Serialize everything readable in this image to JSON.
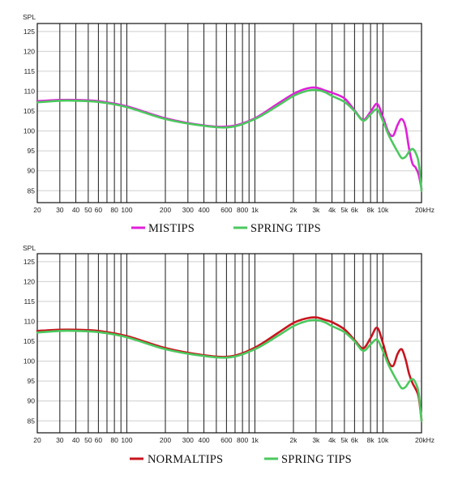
{
  "chart_data": [
    {
      "type": "line",
      "ylabel": "SPL",
      "xscale": "log",
      "xlim": [
        20,
        20000
      ],
      "ylim": [
        82,
        127
      ],
      "yticks": [
        85,
        90,
        95,
        100,
        105,
        110,
        115,
        120,
        125
      ],
      "xtick_labels": [
        {
          "value": 20,
          "label": "20"
        },
        {
          "value": 30,
          "label": "30"
        },
        {
          "value": 40,
          "label": "40"
        },
        {
          "value": 50,
          "label": "50"
        },
        {
          "value": 60,
          "label": "60"
        },
        {
          "value": 80,
          "label": "80"
        },
        {
          "value": 100,
          "label": "100"
        },
        {
          "value": 200,
          "label": "200"
        },
        {
          "value": 300,
          "label": "300"
        },
        {
          "value": 400,
          "label": "400"
        },
        {
          "value": 600,
          "label": "600"
        },
        {
          "value": 800,
          "label": "800"
        },
        {
          "value": 1000,
          "label": "1k"
        },
        {
          "value": 2000,
          "label": "2k"
        },
        {
          "value": 3000,
          "label": "3k"
        },
        {
          "value": 4000,
          "label": "4k"
        },
        {
          "value": 5000,
          "label": "5k"
        },
        {
          "value": 6000,
          "label": "6k"
        },
        {
          "value": 8000,
          "label": "8k"
        },
        {
          "value": 10000,
          "label": "10k"
        },
        {
          "value": 20000,
          "label": "20kHz"
        }
      ],
      "grid_x": [
        20,
        30,
        40,
        50,
        60,
        70,
        80,
        90,
        100,
        200,
        300,
        400,
        500,
        600,
        700,
        800,
        900,
        1000,
        2000,
        3000,
        4000,
        5000,
        6000,
        7000,
        8000,
        9000,
        10000,
        20000
      ],
      "grid": true,
      "legend_position": "bottom-center",
      "series": [
        {
          "name": "MISTIPS",
          "color": "#e020d8",
          "x": [
            20,
            30,
            40,
            60,
            100,
            200,
            400,
            650,
            1000,
            1500,
            2000,
            2500,
            3000,
            3500,
            4000,
            5000,
            6000,
            7000,
            8000,
            9000,
            10000,
            11000,
            12000,
            13000,
            14000,
            15000,
            16000,
            17000,
            18000,
            19000,
            20000
          ],
          "values": [
            107.5,
            107.8,
            107.8,
            107.5,
            106.2,
            103.2,
            101.4,
            101.2,
            103.2,
            106.8,
            109.3,
            110.6,
            110.9,
            110.2,
            109.6,
            108.2,
            105.2,
            102.8,
            104.8,
            106.8,
            103.5,
            99.8,
            98.8,
            101.5,
            103.0,
            101.0,
            95.5,
            91.8,
            90.8,
            89.0,
            85.5
          ]
        },
        {
          "name": "SPRING TIPS",
          "color": "#4cc85e",
          "x": [
            20,
            30,
            40,
            60,
            100,
            200,
            400,
            650,
            1000,
            1500,
            2000,
            2500,
            3000,
            3500,
            4000,
            5000,
            6000,
            7000,
            8000,
            9000,
            10000,
            11000,
            12000,
            13000,
            14000,
            15000,
            16000,
            17000,
            18000,
            19000,
            20000
          ],
          "values": [
            107.2,
            107.6,
            107.6,
            107.3,
            106.0,
            103.0,
            101.3,
            101.0,
            103.0,
            106.3,
            108.8,
            110.0,
            110.3,
            109.8,
            108.8,
            107.3,
            105.0,
            102.6,
            104.2,
            105.4,
            102.5,
            99.2,
            96.8,
            94.8,
            93.2,
            93.5,
            94.8,
            95.5,
            94.5,
            92.0,
            85.0
          ]
        }
      ],
      "legend": {
        "left": "MISTIPS",
        "right": "SPRING TIPS"
      }
    },
    {
      "type": "line",
      "ylabel": "SPL",
      "xscale": "log",
      "xlim": [
        20,
        20000
      ],
      "ylim": [
        82,
        127
      ],
      "yticks": [
        85,
        90,
        95,
        100,
        105,
        110,
        115,
        120,
        125
      ],
      "xtick_labels": [
        {
          "value": 20,
          "label": "20"
        },
        {
          "value": 30,
          "label": "30"
        },
        {
          "value": 40,
          "label": "40"
        },
        {
          "value": 50,
          "label": "50"
        },
        {
          "value": 60,
          "label": "60"
        },
        {
          "value": 80,
          "label": "80"
        },
        {
          "value": 100,
          "label": "100"
        },
        {
          "value": 200,
          "label": "200"
        },
        {
          "value": 300,
          "label": "300"
        },
        {
          "value": 400,
          "label": "400"
        },
        {
          "value": 600,
          "label": "600"
        },
        {
          "value": 800,
          "label": "800"
        },
        {
          "value": 1000,
          "label": "1k"
        },
        {
          "value": 2000,
          "label": "2k"
        },
        {
          "value": 3000,
          "label": "3k"
        },
        {
          "value": 4000,
          "label": "4k"
        },
        {
          "value": 5000,
          "label": "5k"
        },
        {
          "value": 6000,
          "label": "6k"
        },
        {
          "value": 8000,
          "label": "8k"
        },
        {
          "value": 10000,
          "label": "10k"
        },
        {
          "value": 20000,
          "label": "20kHz"
        }
      ],
      "grid_x": [
        20,
        30,
        40,
        50,
        60,
        70,
        80,
        90,
        100,
        200,
        300,
        400,
        500,
        600,
        700,
        800,
        900,
        1000,
        2000,
        3000,
        4000,
        5000,
        6000,
        7000,
        8000,
        9000,
        10000,
        20000
      ],
      "grid": true,
      "legend_position": "bottom-center",
      "series": [
        {
          "name": "NORMALTIPS",
          "color": "#c8141e",
          "x": [
            20,
            30,
            40,
            60,
            100,
            200,
            400,
            650,
            1000,
            1500,
            2000,
            2500,
            3000,
            3500,
            4000,
            5000,
            6000,
            7000,
            8000,
            9000,
            10000,
            11000,
            12000,
            13000,
            14000,
            15000,
            16000,
            17000,
            18000,
            19000,
            20000
          ],
          "values": [
            107.6,
            107.9,
            107.9,
            107.6,
            106.3,
            103.3,
            101.5,
            101.2,
            103.4,
            107.0,
            109.6,
            110.7,
            111.0,
            110.4,
            109.8,
            108.0,
            105.3,
            103.2,
            105.8,
            108.4,
            104.5,
            100.0,
            98.8,
            101.8,
            103.0,
            100.5,
            96.8,
            94.5,
            93.0,
            91.0,
            85.2
          ]
        },
        {
          "name": "SPRING TIPS",
          "color": "#4cc85e",
          "x": [
            20,
            30,
            40,
            60,
            100,
            200,
            400,
            650,
            1000,
            1500,
            2000,
            2500,
            3000,
            3500,
            4000,
            5000,
            6000,
            7000,
            8000,
            9000,
            10000,
            11000,
            12000,
            13000,
            14000,
            15000,
            16000,
            17000,
            18000,
            19000,
            20000
          ],
          "values": [
            107.2,
            107.6,
            107.6,
            107.3,
            106.0,
            103.0,
            101.3,
            101.0,
            103.0,
            106.3,
            108.8,
            110.0,
            110.3,
            109.8,
            108.8,
            107.3,
            105.0,
            102.6,
            104.2,
            105.4,
            102.5,
            99.2,
            96.8,
            94.8,
            93.2,
            93.5,
            94.8,
            95.5,
            94.5,
            92.0,
            85.0
          ]
        }
      ],
      "legend": {
        "left": "NORMALTIPS",
        "right": "SPRING TIPS"
      }
    }
  ]
}
